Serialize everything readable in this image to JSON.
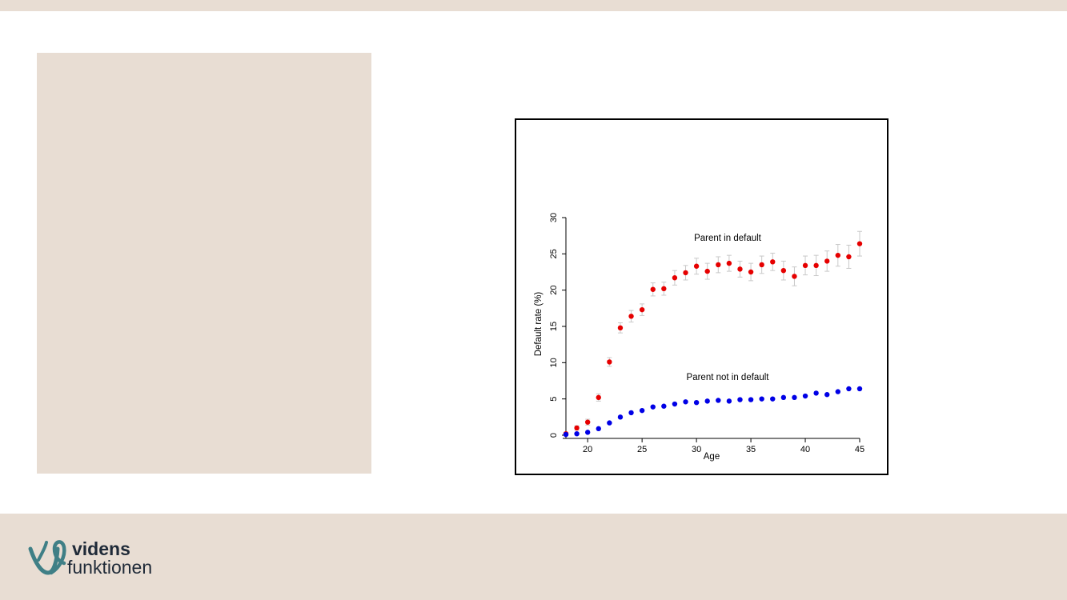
{
  "logo": {
    "line1": "videns",
    "line2": "funktionen",
    "icon": "videns-logo-icon"
  },
  "colors": {
    "band": "#e8ddd3",
    "series_default": "#e60000",
    "series_not_default": "#0000e6",
    "error_bar": "#c8c8c8",
    "logo_mark": "#3f7f86",
    "logo_text": "#1f2a38"
  },
  "chart_data": {
    "type": "scatter",
    "xlabel": "Age",
    "ylabel": "Default rate (%)",
    "xlim": [
      18,
      45
    ],
    "ylim": [
      0,
      30
    ],
    "xticks": [
      "20",
      "25",
      "30",
      "35",
      "40",
      "45"
    ],
    "yticks": [
      "0",
      "5",
      "10",
      "15",
      "20",
      "25",
      "30"
    ],
    "grid": false,
    "annotations": [
      "Parent in default",
      "Parent not in default"
    ],
    "series": [
      {
        "color": "#e60000",
        "x": [
          18,
          19,
          20,
          21,
          22,
          23,
          24,
          25,
          26,
          27,
          28,
          29,
          30,
          31,
          32,
          33,
          34,
          35,
          36,
          37,
          38,
          39,
          40,
          41,
          42,
          43,
          44,
          45
        ],
        "y": [
          0.2,
          1.0,
          1.8,
          5.2,
          10.1,
          14.8,
          16.4,
          17.3,
          20.1,
          20.2,
          21.7,
          22.4,
          23.3,
          22.6,
          23.5,
          23.7,
          22.9,
          22.5,
          23.5,
          23.9,
          22.7,
          21.9,
          23.4,
          23.4,
          24.0,
          24.8,
          24.6,
          26.4
        ],
        "err": [
          0.2,
          0.3,
          0.4,
          0.5,
          0.6,
          0.7,
          0.8,
          0.8,
          0.9,
          0.9,
          1.0,
          1.0,
          1.1,
          1.1,
          1.1,
          1.1,
          1.1,
          1.2,
          1.2,
          1.2,
          1.3,
          1.3,
          1.3,
          1.4,
          1.4,
          1.5,
          1.6,
          1.7
        ]
      },
      {
        "color": "#0000e6",
        "x": [
          18,
          19,
          20,
          21,
          22,
          23,
          24,
          25,
          26,
          27,
          28,
          29,
          30,
          31,
          32,
          33,
          34,
          35,
          36,
          37,
          38,
          39,
          40,
          41,
          42,
          43,
          44,
          45
        ],
        "y": [
          0.1,
          0.2,
          0.4,
          0.9,
          1.7,
          2.5,
          3.1,
          3.4,
          3.9,
          4.0,
          4.3,
          4.6,
          4.5,
          4.7,
          4.8,
          4.7,
          4.9,
          4.9,
          5.0,
          5.0,
          5.2,
          5.2,
          5.4,
          5.8,
          5.6,
          6.0,
          6.4,
          6.4
        ]
      }
    ]
  }
}
